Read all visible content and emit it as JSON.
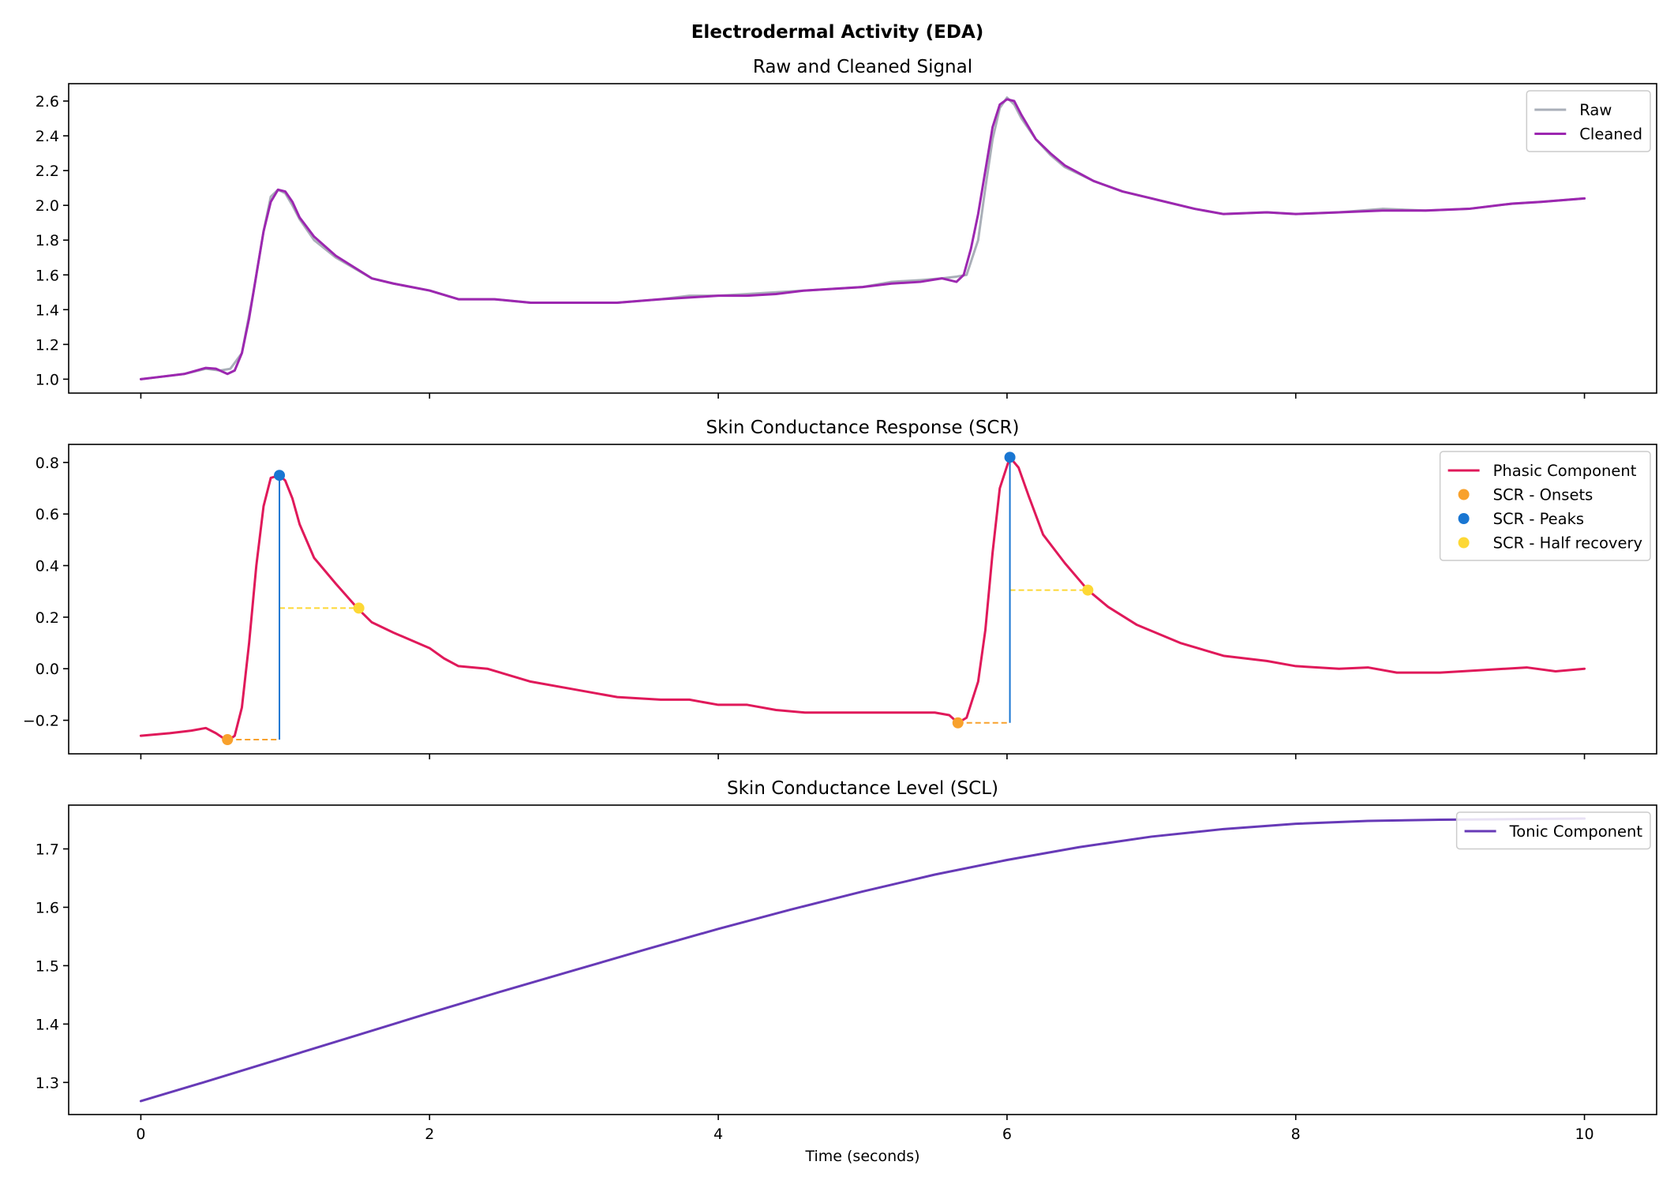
{
  "figure": {
    "suptitle": "Electrodermal Activity (EDA)",
    "xlabel": "Time (seconds)",
    "colors": {
      "raw": "#a9afb8",
      "cleaned": "#9c27b0",
      "phasic": "#e0195a",
      "onset": "#f8a12c",
      "peak": "#1976d2",
      "half": "#fdd835",
      "tonic": "#673ab7"
    }
  },
  "chart_data": [
    {
      "type": "line",
      "title": "Raw and Cleaned Signal",
      "xlim": [
        -0.5,
        10.5
      ],
      "ylim": [
        0.92,
        2.7
      ],
      "xticks": [
        0,
        2,
        4,
        6,
        8,
        10
      ],
      "yticks": [
        1.0,
        1.2,
        1.4,
        1.6,
        1.8,
        2.0,
        2.2,
        2.4,
        2.6
      ],
      "ytick_labels": [
        "1.0",
        "1.2",
        "1.4",
        "1.6",
        "1.8",
        "2.0",
        "2.2",
        "2.4",
        "2.6"
      ],
      "legend_position": "upper right",
      "series": [
        {
          "name": "Raw",
          "x": [
            0,
            0.1,
            0.3,
            0.45,
            0.55,
            0.62,
            0.7,
            0.78,
            0.85,
            0.9,
            0.95,
            1.0,
            1.05,
            1.1,
            1.2,
            1.35,
            1.6,
            1.75,
            2.0,
            2.2,
            2.45,
            2.7,
            3.0,
            3.3,
            3.6,
            3.8,
            4.0,
            4.2,
            4.4,
            4.6,
            4.8,
            5.0,
            5.2,
            5.4,
            5.55,
            5.65,
            5.72,
            5.8,
            5.85,
            5.9,
            5.95,
            6.0,
            6.05,
            6.1,
            6.2,
            6.3,
            6.4,
            6.6,
            6.8,
            7.0,
            7.3,
            7.5,
            7.8,
            8.0,
            8.3,
            8.6,
            8.9,
            9.2,
            9.5,
            9.7,
            10.0
          ],
          "y": [
            1.0,
            1.01,
            1.03,
            1.06,
            1.05,
            1.06,
            1.15,
            1.5,
            1.85,
            2.05,
            2.09,
            2.07,
            2.0,
            1.92,
            1.8,
            1.7,
            1.58,
            1.55,
            1.51,
            1.46,
            1.46,
            1.44,
            1.44,
            1.44,
            1.46,
            1.48,
            1.48,
            1.49,
            1.5,
            1.51,
            1.52,
            1.53,
            1.56,
            1.57,
            1.58,
            1.59,
            1.6,
            1.8,
            2.1,
            2.38,
            2.56,
            2.62,
            2.58,
            2.5,
            2.38,
            2.29,
            2.22,
            2.14,
            2.08,
            2.04,
            1.98,
            1.95,
            1.96,
            1.95,
            1.96,
            1.98,
            1.97,
            1.98,
            2.01,
            2.02,
            2.04
          ]
        },
        {
          "name": "Cleaned",
          "x": [
            0,
            0.1,
            0.3,
            0.45,
            0.52,
            0.6,
            0.65,
            0.7,
            0.75,
            0.8,
            0.85,
            0.9,
            0.95,
            1.0,
            1.05,
            1.1,
            1.2,
            1.35,
            1.6,
            1.75,
            2.0,
            2.2,
            2.45,
            2.7,
            3.0,
            3.3,
            3.6,
            3.8,
            4.0,
            4.2,
            4.4,
            4.6,
            4.8,
            5.0,
            5.2,
            5.4,
            5.55,
            5.65,
            5.7,
            5.75,
            5.8,
            5.85,
            5.9,
            5.95,
            6.0,
            6.05,
            6.1,
            6.2,
            6.3,
            6.4,
            6.6,
            6.8,
            7.0,
            7.3,
            7.5,
            7.8,
            8.0,
            8.3,
            8.6,
            8.9,
            9.2,
            9.5,
            9.7,
            10.0
          ],
          "y": [
            1.0,
            1.01,
            1.03,
            1.065,
            1.06,
            1.03,
            1.05,
            1.15,
            1.35,
            1.6,
            1.85,
            2.02,
            2.09,
            2.08,
            2.02,
            1.93,
            1.82,
            1.71,
            1.58,
            1.55,
            1.51,
            1.46,
            1.46,
            1.44,
            1.44,
            1.44,
            1.46,
            1.47,
            1.48,
            1.48,
            1.49,
            1.51,
            1.52,
            1.53,
            1.55,
            1.56,
            1.58,
            1.56,
            1.6,
            1.75,
            1.95,
            2.2,
            2.45,
            2.58,
            2.61,
            2.6,
            2.52,
            2.38,
            2.3,
            2.23,
            2.14,
            2.08,
            2.04,
            1.98,
            1.95,
            1.96,
            1.95,
            1.96,
            1.97,
            1.97,
            1.98,
            2.01,
            2.02,
            2.04
          ]
        }
      ]
    },
    {
      "type": "line",
      "title": "Skin Conductance Response (SCR)",
      "xlim": [
        -0.5,
        10.5
      ],
      "ylim": [
        -0.33,
        0.87
      ],
      "xticks": [
        0,
        2,
        4,
        6,
        8,
        10
      ],
      "yticks": [
        -0.2,
        0.0,
        0.2,
        0.4,
        0.6,
        0.8
      ],
      "ytick_labels": [
        "−0.2",
        "0.0",
        "0.2",
        "0.4",
        "0.6",
        "0.8"
      ],
      "legend_position": "upper right",
      "series": [
        {
          "name": "Phasic Component",
          "x": [
            0,
            0.2,
            0.35,
            0.45,
            0.52,
            0.6,
            0.65,
            0.7,
            0.75,
            0.8,
            0.85,
            0.9,
            0.96,
            1.0,
            1.05,
            1.1,
            1.2,
            1.35,
            1.5,
            1.6,
            1.75,
            2.0,
            2.1,
            2.2,
            2.4,
            2.7,
            3.0,
            3.3,
            3.6,
            3.8,
            4.0,
            4.2,
            4.4,
            4.6,
            4.8,
            5.0,
            5.2,
            5.35,
            5.5,
            5.6,
            5.66,
            5.72,
            5.8,
            5.85,
            5.9,
            5.95,
            6.02,
            6.08,
            6.15,
            6.25,
            6.4,
            6.56,
            6.7,
            6.9,
            7.2,
            7.5,
            7.8,
            8.0,
            8.3,
            8.5,
            8.7,
            9.0,
            9.3,
            9.6,
            9.8,
            10.0
          ],
          "y": [
            -0.26,
            -0.25,
            -0.24,
            -0.23,
            -0.25,
            -0.28,
            -0.26,
            -0.15,
            0.1,
            0.4,
            0.63,
            0.74,
            0.75,
            0.73,
            0.66,
            0.56,
            0.43,
            0.33,
            0.235,
            0.18,
            0.14,
            0.08,
            0.04,
            0.01,
            0.0,
            -0.05,
            -0.08,
            -0.11,
            -0.12,
            -0.12,
            -0.14,
            -0.14,
            -0.16,
            -0.17,
            -0.17,
            -0.17,
            -0.17,
            -0.17,
            -0.17,
            -0.18,
            -0.21,
            -0.19,
            -0.05,
            0.15,
            0.45,
            0.7,
            0.82,
            0.78,
            0.67,
            0.52,
            0.41,
            0.305,
            0.24,
            0.17,
            0.1,
            0.05,
            0.03,
            0.01,
            0.0,
            0.005,
            -0.015,
            -0.015,
            -0.005,
            0.005,
            -0.01,
            0.0
          ]
        }
      ],
      "onsets": {
        "name": "SCR - Onsets",
        "x": [
          0.6,
          5.66
        ],
        "y": [
          -0.275,
          -0.21
        ]
      },
      "peaks": {
        "name": "SCR - Peaks",
        "x": [
          0.96,
          6.02
        ],
        "y": [
          0.75,
          0.82
        ]
      },
      "half_recovery": {
        "name": "SCR - Half recovery",
        "x": [
          1.51,
          6.56
        ],
        "y": [
          0.235,
          0.305
        ]
      }
    },
    {
      "type": "line",
      "title": "Skin Conductance Level (SCL)",
      "xlim": [
        -0.5,
        10.5
      ],
      "ylim": [
        1.245,
        1.775
      ],
      "xticks": [
        0,
        2,
        4,
        6,
        8,
        10
      ],
      "xtick_labels": [
        "0",
        "2",
        "4",
        "6",
        "8",
        "10"
      ],
      "yticks": [
        1.3,
        1.4,
        1.5,
        1.6,
        1.7
      ],
      "ytick_labels": [
        "1.3",
        "1.4",
        "1.5",
        "1.6",
        "1.7"
      ],
      "xlabel": "Time (seconds)",
      "legend_position": "upper right",
      "series": [
        {
          "name": "Tonic Component",
          "x": [
            0,
            0.5,
            1,
            1.5,
            2,
            2.5,
            3,
            3.5,
            4,
            4.5,
            5,
            5.5,
            6,
            6.5,
            7,
            7.5,
            8,
            8.5,
            9,
            9.5,
            10
          ],
          "y": [
            1.268,
            1.305,
            1.343,
            1.381,
            1.419,
            1.456,
            1.492,
            1.528,
            1.563,
            1.596,
            1.627,
            1.656,
            1.681,
            1.703,
            1.721,
            1.734,
            1.743,
            1.748,
            1.75,
            1.751,
            1.752
          ]
        }
      ]
    }
  ]
}
